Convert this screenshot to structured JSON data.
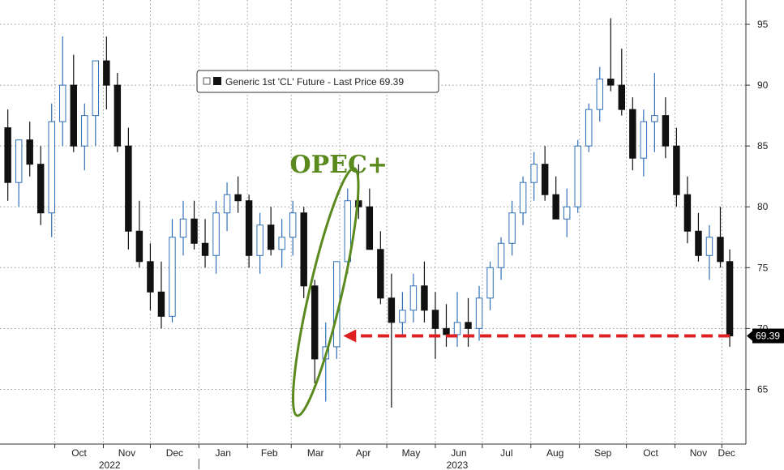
{
  "chart_data": {
    "type": "candlestick",
    "legend": {
      "text": "Generic 1st 'CL' Future - Last Price 69.39",
      "position": "top-left"
    },
    "last_price_label": "69.39",
    "annotation": {
      "text": "OPEC+",
      "color": "#5a8a1e"
    },
    "arrow_color": "#e02020",
    "colors": {
      "up": "#2f6fb5",
      "down": "#111111"
    },
    "y_axis": {
      "side": "right",
      "ylim": [
        60.5,
        97
      ],
      "ticks": [
        "65",
        "70",
        "75",
        "80",
        "85",
        "90",
        "95"
      ],
      "gridlines": true
    },
    "x_axis": {
      "month_ticks": [
        "Oct",
        "Nov",
        "Dec",
        "Jan",
        "Feb",
        "Mar",
        "Apr",
        "May",
        "Jun",
        "Jul",
        "Aug",
        "Sep",
        "Oct",
        "Nov",
        "Dec"
      ],
      "years": [
        "2022",
        "2023"
      ],
      "gridlines": true
    },
    "series": {
      "name": "Generic 1st 'CL' Future",
      "x": [
        "2022-09-01",
        "2022-09-08",
        "2022-09-15",
        "2022-09-22",
        "2022-09-29",
        "2022-10-06",
        "2022-10-13",
        "2022-10-20",
        "2022-10-27",
        "2022-11-03",
        "2022-11-10",
        "2022-11-17",
        "2022-11-24",
        "2022-12-01",
        "2022-12-08",
        "2022-12-15",
        "2022-12-22",
        "2022-12-29",
        "2023-01-05",
        "2023-01-12",
        "2023-01-19",
        "2023-01-26",
        "2023-02-02",
        "2023-02-09",
        "2023-02-16",
        "2023-02-23",
        "2023-03-02",
        "2023-03-09",
        "2023-03-16",
        "2023-03-23",
        "2023-03-30",
        "2023-04-06",
        "2023-04-13",
        "2023-04-20",
        "2023-04-27",
        "2023-05-04",
        "2023-05-11",
        "2023-05-18",
        "2023-05-25",
        "2023-06-01",
        "2023-06-08",
        "2023-06-15",
        "2023-06-22",
        "2023-06-29",
        "2023-07-06",
        "2023-07-13",
        "2023-07-20",
        "2023-07-27",
        "2023-08-03",
        "2023-08-10",
        "2023-08-17",
        "2023-08-24",
        "2023-08-31",
        "2023-09-07",
        "2023-09-14",
        "2023-09-21",
        "2023-09-28",
        "2023-10-05",
        "2023-10-12",
        "2023-10-19",
        "2023-10-26",
        "2023-11-02",
        "2023-11-09",
        "2023-11-16",
        "2023-11-23",
        "2023-11-30",
        "2023-12-06"
      ],
      "open": [
        86.5,
        82.0,
        85.5,
        83.5,
        79.5,
        87.0,
        90.0,
        85.0,
        87.5,
        92.0,
        90.0,
        85.0,
        78.0,
        75.5,
        73.0,
        71.0,
        77.5,
        79.0,
        77.0,
        76.0,
        79.5,
        81.0,
        80.5,
        76.0,
        78.5,
        76.5,
        77.5,
        79.5,
        73.5,
        67.5,
        68.5,
        75.5,
        80.5,
        80.0,
        76.5,
        72.5,
        70.5,
        71.5,
        73.5,
        71.5,
        70.0,
        69.5,
        70.5,
        70.0,
        72.5,
        75.0,
        77.0,
        79.5,
        82.0,
        83.5,
        81.0,
        79.0,
        80.0,
        85.0,
        88.0,
        90.5,
        90.0,
        88.0,
        84.0,
        87.0,
        87.5,
        85.0,
        81.0,
        78.0,
        76.0,
        77.5,
        75.5
      ],
      "high": [
        88.0,
        85.5,
        87.0,
        85.0,
        88.5,
        94.0,
        92.5,
        88.5,
        92.0,
        94.0,
        91.0,
        86.5,
        80.5,
        77.0,
        75.5,
        79.0,
        80.5,
        80.5,
        79.0,
        80.5,
        82.0,
        82.5,
        81.0,
        79.5,
        80.0,
        79.0,
        80.5,
        80.0,
        74.0,
        70.5,
        75.5,
        81.5,
        83.5,
        81.5,
        78.0,
        74.5,
        73.0,
        74.5,
        75.5,
        73.0,
        72.0,
        73.0,
        72.5,
        73.5,
        75.5,
        77.5,
        80.5,
        82.5,
        84.5,
        85.0,
        82.5,
        81.5,
        85.5,
        88.5,
        91.5,
        95.5,
        93.0,
        89.0,
        88.0,
        91.0,
        89.0,
        86.5,
        82.5,
        79.5,
        78.5,
        80.0,
        76.5
      ],
      "low": [
        80.5,
        80.0,
        82.5,
        78.5,
        77.5,
        85.0,
        84.5,
        83.0,
        85.0,
        88.0,
        84.5,
        76.5,
        75.0,
        71.5,
        70.0,
        70.5,
        76.0,
        76.5,
        75.0,
        74.5,
        78.0,
        79.5,
        75.0,
        74.5,
        76.0,
        75.0,
        76.0,
        72.5,
        65.5,
        64.0,
        67.5,
        74.5,
        79.0,
        76.5,
        72.0,
        63.5,
        69.5,
        70.5,
        70.5,
        67.5,
        68.5,
        68.5,
        68.5,
        69.0,
        71.5,
        74.0,
        76.0,
        78.5,
        80.5,
        80.5,
        79.0,
        77.5,
        79.5,
        84.5,
        87.0,
        89.5,
        87.5,
        83.0,
        82.5,
        84.5,
        84.0,
        80.0,
        77.0,
        75.5,
        74.0,
        75.0,
        68.5
      ],
      "close": [
        82.0,
        85.5,
        83.5,
        79.5,
        87.0,
        90.0,
        85.0,
        87.5,
        92.0,
        90.0,
        85.0,
        78.0,
        75.5,
        73.0,
        71.0,
        77.5,
        79.0,
        77.0,
        76.0,
        79.5,
        81.0,
        80.5,
        76.0,
        78.5,
        76.5,
        77.5,
        79.5,
        73.5,
        67.5,
        68.5,
        75.5,
        80.5,
        80.0,
        76.5,
        72.5,
        70.5,
        71.5,
        73.5,
        71.5,
        70.0,
        69.5,
        70.5,
        70.0,
        72.5,
        75.0,
        77.0,
        79.5,
        82.0,
        83.5,
        81.0,
        79.0,
        80.0,
        85.0,
        88.0,
        90.5,
        90.0,
        88.0,
        84.0,
        87.0,
        87.5,
        85.0,
        81.0,
        78.0,
        76.0,
        77.5,
        75.5,
        69.39
      ]
    }
  }
}
